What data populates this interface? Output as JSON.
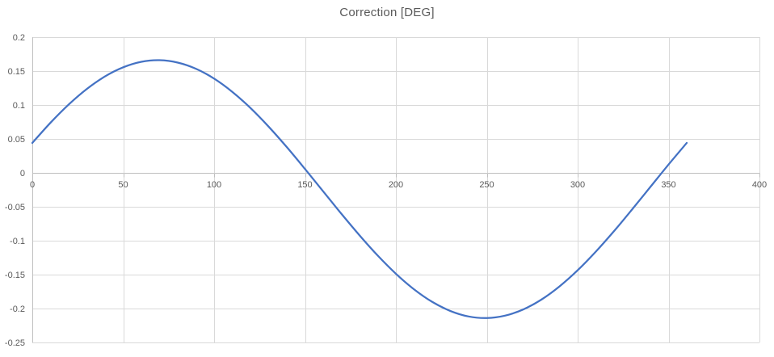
{
  "chart_data": {
    "type": "line",
    "title": "Correction [DEG]",
    "xlabel": "",
    "ylabel": "",
    "xlim": [
      0,
      400
    ],
    "ylim": [
      -0.25,
      0.2
    ],
    "x_ticks": [
      0,
      50,
      100,
      150,
      200,
      250,
      300,
      350,
      400
    ],
    "x_tick_labels": [
      "0",
      "50",
      "100",
      "150",
      "200",
      "250",
      "300",
      "350",
      "400"
    ],
    "y_ticks": [
      0.2,
      0.15,
      0.1,
      0.05,
      0,
      -0.05,
      -0.1,
      -0.15,
      -0.2,
      -0.25
    ],
    "y_tick_labels": [
      "0.2",
      "0.15",
      "0.1",
      "0.05",
      "0",
      "-0.05",
      "-0.1",
      "-0.15",
      "-0.2",
      "-0.25"
    ],
    "grid": true,
    "legend": "none",
    "series": [
      {
        "name": "Correction",
        "x": [
          0,
          10,
          20,
          30,
          40,
          50,
          60,
          70,
          80,
          90,
          100,
          110,
          120,
          130,
          140,
          150,
          160,
          170,
          180,
          190,
          200,
          210,
          220,
          230,
          240,
          250,
          260,
          270,
          280,
          290,
          300,
          310,
          320,
          330,
          340,
          350,
          360
        ],
        "y": [
          0.0441,
          0.0739,
          0.1007,
          0.1237,
          0.1422,
          0.1556,
          0.1637,
          0.166,
          0.1625,
          0.1534,
          0.1389,
          0.1194,
          0.0956,
          0.0681,
          0.0379,
          0.0057,
          -0.0273,
          -0.0603,
          -0.0921,
          -0.1219,
          -0.1487,
          -0.1717,
          -0.1902,
          -0.2036,
          -0.2117,
          -0.214,
          -0.2105,
          -0.2014,
          -0.1869,
          -0.1674,
          -0.1436,
          -0.1161,
          -0.0859,
          -0.0537,
          -0.0207,
          0.0123,
          0.0441
        ]
      }
    ],
    "colors": {
      "series_line": "#4472C4",
      "gridline": "#D9D9D9",
      "axis_line": "#BFBFBF",
      "tick_label": "#595959",
      "title": "#595959",
      "background": "#FFFFFF"
    }
  }
}
